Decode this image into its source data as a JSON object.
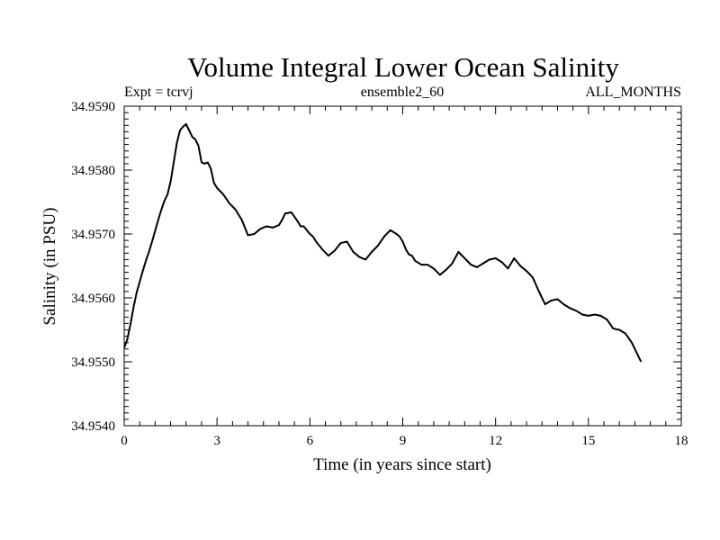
{
  "chart_data": {
    "type": "line",
    "title": "Volume Integral Lower Ocean Salinity",
    "subtitle_left": "Expt = tcrvj",
    "subtitle_center": "ensemble2_60",
    "subtitle_right": "ALL_MONTHS",
    "xlabel": "Time (in years since start)",
    "ylabel": "Salinity (in PSU)",
    "xlim": [
      0,
      18
    ],
    "ylim": [
      34.954,
      34.959
    ],
    "x_ticks": [
      0,
      3,
      6,
      9,
      12,
      15,
      18
    ],
    "x_tick_labels": [
      "0",
      "3",
      "6",
      "9",
      "12",
      "15",
      "18"
    ],
    "y_ticks": [
      34.954,
      34.955,
      34.956,
      34.957,
      34.958,
      34.959
    ],
    "y_tick_labels": [
      "34.9540",
      "34.9550",
      "34.9560",
      "34.9570",
      "34.9580",
      "34.9590"
    ],
    "grid": false,
    "series": [
      {
        "name": "Salinity",
        "color": "#000000",
        "x": [
          0.0,
          0.1,
          0.2,
          0.3,
          0.4,
          0.5,
          0.6,
          0.7,
          0.8,
          0.9,
          1.0,
          1.1,
          1.2,
          1.3,
          1.4,
          1.5,
          1.6,
          1.7,
          1.8,
          1.9,
          2.0,
          2.1,
          2.2,
          2.3,
          2.4,
          2.5,
          2.6,
          2.7,
          2.8,
          2.9,
          3.0,
          3.2,
          3.4,
          3.6,
          3.8,
          4.0,
          4.2,
          4.4,
          4.6,
          4.8,
          5.0,
          5.1,
          5.2,
          5.4,
          5.6,
          5.7,
          5.8,
          6.0,
          6.1,
          6.2,
          6.4,
          6.6,
          6.8,
          7.0,
          7.2,
          7.4,
          7.6,
          7.8,
          8.0,
          8.2,
          8.4,
          8.6,
          8.8,
          8.9,
          9.0,
          9.1,
          9.2,
          9.3,
          9.4,
          9.6,
          9.8,
          10.0,
          10.2,
          10.4,
          10.6,
          10.8,
          11.0,
          11.2,
          11.4,
          11.6,
          11.8,
          12.0,
          12.2,
          12.4,
          12.6,
          12.8,
          13.0,
          13.2,
          13.4,
          13.6,
          13.8,
          14.0,
          14.2,
          14.4,
          14.6,
          14.8,
          15.0,
          15.2,
          15.4,
          15.6,
          15.8,
          16.0,
          16.2,
          16.4,
          16.6,
          16.7
        ],
        "values": [
          34.95522,
          34.95535,
          34.95558,
          34.95585,
          34.95608,
          34.95625,
          34.95642,
          34.95658,
          34.95672,
          34.95688,
          34.95705,
          34.95722,
          34.95738,
          34.95752,
          34.95762,
          34.95782,
          34.95812,
          34.95842,
          34.95862,
          34.95868,
          34.95872,
          34.95862,
          34.95852,
          34.95848,
          34.95838,
          34.95812,
          34.9581,
          34.95812,
          34.95802,
          34.9578,
          34.95772,
          34.95762,
          34.95748,
          34.95738,
          34.95722,
          34.95698,
          34.957,
          34.95708,
          34.95712,
          34.9571,
          34.95714,
          34.95722,
          34.95732,
          34.95734,
          34.9572,
          34.95712,
          34.95712,
          34.957,
          34.95696,
          34.95688,
          34.95676,
          34.95666,
          34.95674,
          34.95686,
          34.95688,
          34.95672,
          34.95664,
          34.9566,
          34.95672,
          34.95682,
          34.95696,
          34.95706,
          34.957,
          34.95696,
          34.95688,
          34.95676,
          34.95668,
          34.95666,
          34.95658,
          34.95652,
          34.95652,
          34.95646,
          34.95636,
          34.95644,
          34.95654,
          34.95672,
          34.95662,
          34.95652,
          34.95648,
          34.95654,
          34.9566,
          34.95662,
          34.95656,
          34.95646,
          34.95662,
          34.9565,
          34.95642,
          34.95632,
          34.9561,
          34.9559,
          34.95596,
          34.95598,
          34.9559,
          34.95584,
          34.9558,
          34.95574,
          34.95572,
          34.95574,
          34.95572,
          34.95566,
          34.95552,
          34.9555,
          34.95544,
          34.9553,
          34.9551,
          34.955
        ]
      }
    ]
  }
}
